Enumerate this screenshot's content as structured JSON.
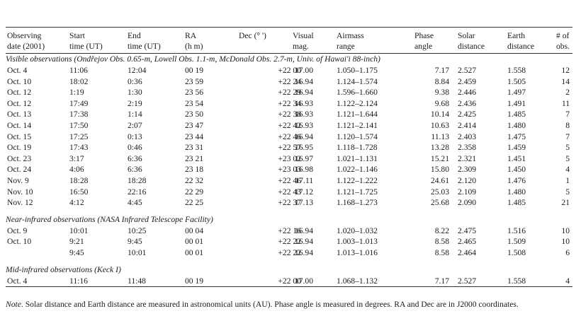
{
  "headers": [
    [
      "Observing",
      "date (2001)"
    ],
    [
      "Start",
      "time (UT)"
    ],
    [
      "End",
      "time (UT)"
    ],
    [
      "RA",
      "(h m)"
    ],
    [
      "Dec (° ')",
      ""
    ],
    [
      "Visual",
      "mag."
    ],
    [
      "Airmass",
      "range"
    ],
    [
      "Phase",
      "angle"
    ],
    [
      "Solar",
      "distance"
    ],
    [
      "Earth",
      "distance"
    ],
    [
      "# of",
      "obs."
    ]
  ],
  "sections": [
    {
      "title": "Visible observations (Ondřejov Obs. 0.65-m, Lowell Obs. 1.1-m, McDonald Obs. 2.7-m, Univ. of Hawai'i 88-inch)",
      "rows": [
        [
          "Oct. 4",
          "11:06",
          "12:04",
          "00 19",
          "+22 00",
          "17.00",
          "1.050–1.175",
          "7.17",
          "2.527",
          "1.558",
          "12"
        ],
        [
          "Oct. 10",
          "18:02",
          "0:36",
          "23 59",
          "+22 24",
          "16.94",
          "1.124–1.574",
          "8.84",
          "2.459",
          "1.505",
          "14"
        ],
        [
          "Oct. 12",
          "1:19",
          "1:30",
          "23 56",
          "+22 29",
          "16.94",
          "1.596–1.660",
          "9.38",
          "2.446",
          "1.497",
          "2"
        ],
        [
          "Oct. 12",
          "17:49",
          "2:19",
          "23 54",
          "+22 34",
          "16.93",
          "1.122–2.124",
          "9.68",
          "2.436",
          "1.491",
          "11"
        ],
        [
          "Oct. 13",
          "17:38",
          "1:14",
          "23 50",
          "+22 38",
          "16.93",
          "1.121–1.644",
          "10.14",
          "2.425",
          "1.485",
          "7"
        ],
        [
          "Oct. 14",
          "17:50",
          "2:07",
          "23 47",
          "+22 42",
          "16.93",
          "1.121–2.141",
          "10.63",
          "2.414",
          "1.480",
          "8"
        ],
        [
          "Oct. 15",
          "17:25",
          "0:13",
          "23 44",
          "+22 46",
          "16.94",
          "1.120–1.574",
          "11.13",
          "2.403",
          "1.475",
          "7"
        ],
        [
          "Oct. 19",
          "17:43",
          "0:46",
          "23 31",
          "+22 57",
          "16.95",
          "1.118–1.728",
          "13.28",
          "2.358",
          "1.459",
          "5"
        ],
        [
          "Oct. 23",
          "3:17",
          "6:36",
          "23 21",
          "+23 02",
          "16.97",
          "1.021–1.131",
          "15.21",
          "2.321",
          "1.451",
          "5"
        ],
        [
          "Oct. 24",
          "4:06",
          "6:36",
          "23 18",
          "+23 03",
          "16.98",
          "1.022–1.146",
          "15.80",
          "2.309",
          "1.450",
          "4"
        ],
        [
          "Nov. 9",
          "18:28",
          "18:28",
          "22 32",
          "+22 46",
          "17.11",
          "1.122–1.222",
          "24.61",
          "2.120",
          "1.476",
          "1"
        ],
        [
          "Nov. 10",
          "16:50",
          "22:16",
          "22 29",
          "+22 43",
          "17.12",
          "1.121–1.725",
          "25.03",
          "2.109",
          "1.480",
          "5"
        ],
        [
          "Nov. 12",
          "4:12",
          "4:45",
          "22 25",
          "+22 37",
          "17.13",
          "1.168–1.273",
          "25.68",
          "2.090",
          "1.485",
          "21"
        ]
      ]
    },
    {
      "title": "Near-infrared observations (NASA Infrared Telescope Facility)",
      "rows": [
        [
          "Oct. 9",
          "10:01",
          "10:25",
          "00 04",
          "+22 16",
          "16.94",
          "1.020–1.032",
          "8.22",
          "2.475",
          "1.516",
          "10"
        ],
        [
          "Oct. 10",
          "9:21",
          "9:45",
          "00 01",
          "+22 22",
          "16.94",
          "1.003–1.013",
          "8.58",
          "2.465",
          "1.509",
          "10"
        ],
        [
          "",
          "9:45",
          "10:01",
          "00 01",
          "+22 22",
          "16.94",
          "1.013–1.016",
          "8.58",
          "2.464",
          "1.508",
          "6"
        ]
      ]
    },
    {
      "title": "Mid-infrared observations (Keck I)",
      "rows": [
        [
          "Oct. 4",
          "11:16",
          "11:48",
          "00 19",
          "+22 00",
          "17.00",
          "1.068–1.132",
          "7.17",
          "2.527",
          "1.558",
          "4"
        ]
      ]
    }
  ],
  "note": {
    "label": "Note",
    "text": ". Solar distance and Earth distance are measured in astronomical units (AU). Phase angle is measured in degrees. RA and Dec are in J2000 coordinates."
  }
}
